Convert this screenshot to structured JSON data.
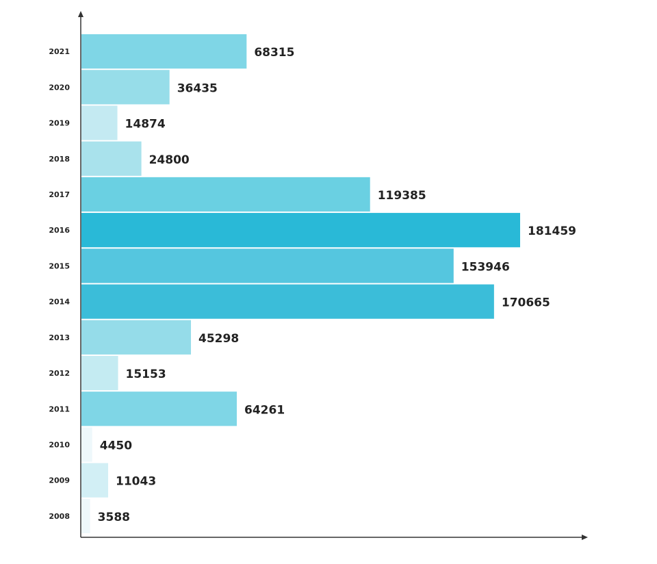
{
  "chart_data": {
    "type": "bar",
    "orientation": "horizontal",
    "categories": [
      "2021",
      "2020",
      "2019",
      "2018",
      "2017",
      "2016",
      "2015",
      "2014",
      "2013",
      "2012",
      "2011",
      "2010",
      "2009",
      "2008"
    ],
    "values": [
      68315,
      36435,
      14874,
      24800,
      119385,
      181459,
      153946,
      170665,
      45298,
      15153,
      64261,
      4450,
      11043,
      3588
    ],
    "colors": [
      "#7fd6e6",
      "#97dde9",
      "#c4eaf2",
      "#a9e2ec",
      "#6ad0e2",
      "#29b9d7",
      "#55c6df",
      "#3bbdd9",
      "#95dce9",
      "#c4ebf2",
      "#7fd6e6",
      "#eef8fb",
      "#d2eff5",
      "#eef8fb"
    ]
  }
}
